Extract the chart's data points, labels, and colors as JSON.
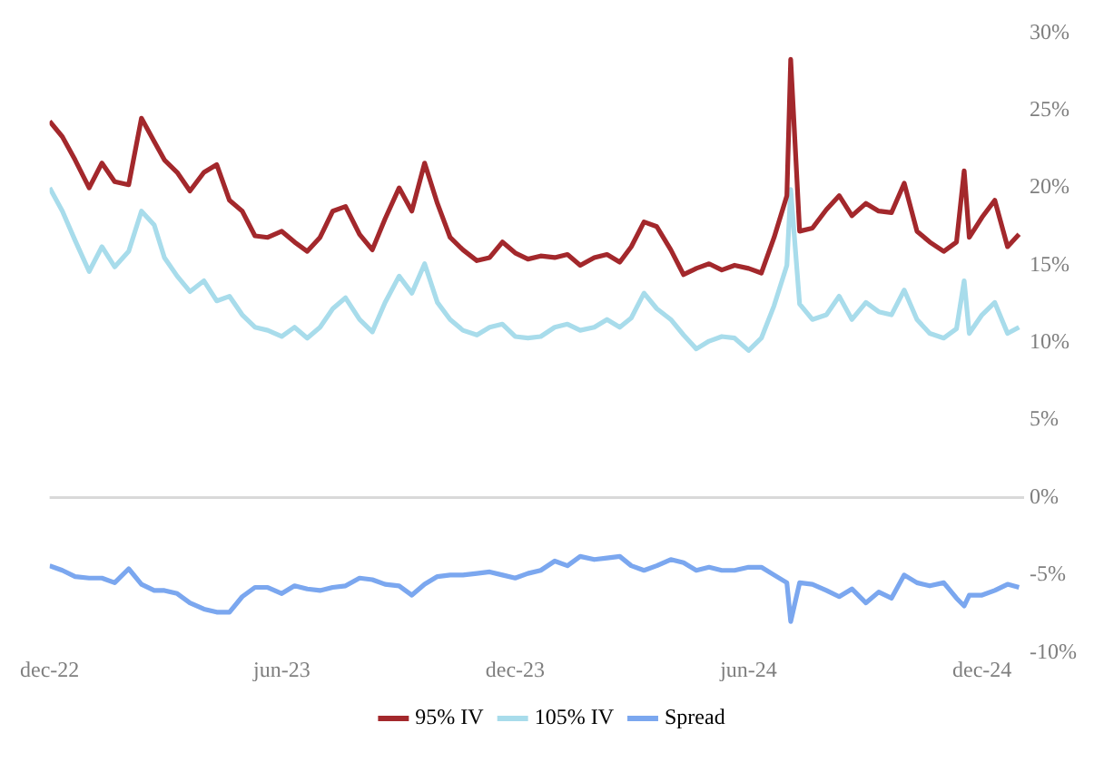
{
  "chart_data": {
    "type": "line",
    "x": [
      "2022-12-01",
      "2022-12-11",
      "2022-12-21",
      "2023-01-01",
      "2023-01-11",
      "2023-01-21",
      "2023-02-01",
      "2023-02-11",
      "2023-02-21",
      "2023-03-01",
      "2023-03-11",
      "2023-03-21",
      "2023-04-01",
      "2023-04-11",
      "2023-04-21",
      "2023-05-01",
      "2023-05-11",
      "2023-05-21",
      "2023-06-01",
      "2023-06-11",
      "2023-06-21",
      "2023-07-01",
      "2023-07-11",
      "2023-07-21",
      "2023-08-01",
      "2023-08-11",
      "2023-08-21",
      "2023-09-01",
      "2023-09-11",
      "2023-09-21",
      "2023-10-01",
      "2023-10-11",
      "2023-10-21",
      "2023-11-01",
      "2023-11-11",
      "2023-11-21",
      "2023-12-01",
      "2023-12-11",
      "2023-12-21",
      "2024-01-01",
      "2024-01-11",
      "2024-01-21",
      "2024-02-01",
      "2024-02-11",
      "2024-02-21",
      "2024-03-01",
      "2024-03-11",
      "2024-03-21",
      "2024-04-01",
      "2024-04-11",
      "2024-04-21",
      "2024-05-01",
      "2024-05-11",
      "2024-05-21",
      "2024-06-01",
      "2024-06-11",
      "2024-06-21",
      "2024-07-01",
      "2024-07-04",
      "2024-07-11",
      "2024-07-21",
      "2024-08-01",
      "2024-08-11",
      "2024-08-21",
      "2024-09-01",
      "2024-09-11",
      "2024-09-21",
      "2024-10-01",
      "2024-10-11",
      "2024-10-21",
      "2024-11-01",
      "2024-11-11",
      "2024-11-17",
      "2024-11-21",
      "2024-12-01",
      "2024-12-11",
      "2024-12-21",
      "2024-12-30"
    ],
    "series": [
      {
        "name": "95% IV",
        "color": "#a3282c",
        "values": [
          24.3,
          23.3,
          21.8,
          20.0,
          21.6,
          20.4,
          20.2,
          24.5,
          23.0,
          21.8,
          21.0,
          19.8,
          21.0,
          21.5,
          19.2,
          18.5,
          16.9,
          16.8,
          17.2,
          16.5,
          15.9,
          16.8,
          18.5,
          18.8,
          17.0,
          16.0,
          18.0,
          20.0,
          18.5,
          21.6,
          19.0,
          16.8,
          16.0,
          15.3,
          15.5,
          16.5,
          15.8,
          15.4,
          15.6,
          15.5,
          15.7,
          15.0,
          15.5,
          15.7,
          15.2,
          16.2,
          17.8,
          17.5,
          16.0,
          14.4,
          14.8,
          15.1,
          14.7,
          15.0,
          14.8,
          14.5,
          16.8,
          19.5,
          28.3,
          17.2,
          17.4,
          18.6,
          19.5,
          18.2,
          19.0,
          18.5,
          18.4,
          20.3,
          17.2,
          16.5,
          15.9,
          16.5,
          21.1,
          16.8,
          18.1,
          19.2,
          16.2,
          17.0
        ]
      },
      {
        "name": "105% IV",
        "color": "#a8dceb",
        "values": [
          20.0,
          18.5,
          16.6,
          14.6,
          16.2,
          14.9,
          15.9,
          18.5,
          17.6,
          15.5,
          14.3,
          13.3,
          14.0,
          12.7,
          13.0,
          11.8,
          11.0,
          10.8,
          10.4,
          11.0,
          10.3,
          11.0,
          12.2,
          12.9,
          11.5,
          10.7,
          12.6,
          14.3,
          13.2,
          15.1,
          12.6,
          11.5,
          10.8,
          10.5,
          11.0,
          11.2,
          10.4,
          10.3,
          10.4,
          11.0,
          11.2,
          10.8,
          11.0,
          11.5,
          11.0,
          11.6,
          13.2,
          12.2,
          11.5,
          10.5,
          9.6,
          10.1,
          10.4,
          10.3,
          9.5,
          10.3,
          12.4,
          15.0,
          19.9,
          12.5,
          11.5,
          11.8,
          13.0,
          11.5,
          12.6,
          12.0,
          11.8,
          13.4,
          11.5,
          10.6,
          10.3,
          10.9,
          14.0,
          10.6,
          11.8,
          12.6,
          10.6,
          11.0
        ]
      },
      {
        "name": "Spread",
        "color": "#7ba7ef",
        "values": [
          -4.4,
          -4.7,
          -5.1,
          -5.2,
          -5.2,
          -5.5,
          -4.6,
          -5.6,
          -6.0,
          -6.0,
          -6.2,
          -6.8,
          -7.2,
          -7.4,
          -7.4,
          -6.4,
          -5.8,
          -5.8,
          -6.2,
          -5.7,
          -5.9,
          -6.0,
          -5.8,
          -5.7,
          -5.2,
          -5.3,
          -5.6,
          -5.7,
          -6.3,
          -5.6,
          -5.1,
          -5.0,
          -5.0,
          -4.9,
          -4.8,
          -5.0,
          -5.2,
          -4.9,
          -4.7,
          -4.1,
          -4.4,
          -3.8,
          -4.0,
          -3.9,
          -3.8,
          -4.4,
          -4.7,
          -4.4,
          -4.0,
          -4.2,
          -4.7,
          -4.5,
          -4.7,
          -4.7,
          -4.5,
          -4.5,
          -5.0,
          -5.5,
          -8.0,
          -5.5,
          -5.6,
          -6.0,
          -6.4,
          -5.9,
          -6.8,
          -6.1,
          -6.5,
          -5.0,
          -5.5,
          -5.7,
          -5.5,
          -6.5,
          -7.0,
          -6.3,
          -6.3,
          -6.0,
          -5.6,
          -5.8
        ]
      }
    ],
    "xlim": [
      "2022-12-01",
      "2025-01-03"
    ],
    "xticks": [
      {
        "value": "2022-12-01",
        "label": "dec-22"
      },
      {
        "value": "2023-06-01",
        "label": "jun-23"
      },
      {
        "value": "2023-12-01",
        "label": "dec-23"
      },
      {
        "value": "2024-06-01",
        "label": "jun-24"
      },
      {
        "value": "2024-12-01",
        "label": "dec-24"
      }
    ],
    "ylim": [
      -10,
      30
    ],
    "yticks": [
      {
        "value": -10,
        "label": "-10%"
      },
      {
        "value": -5,
        "label": "-5%"
      },
      {
        "value": 0,
        "label": "0%"
      },
      {
        "value": 5,
        "label": "5%"
      },
      {
        "value": 10,
        "label": "10%"
      },
      {
        "value": 15,
        "label": "15%"
      },
      {
        "value": 20,
        "label": "20%"
      },
      {
        "value": 25,
        "label": "25%"
      },
      {
        "value": 30,
        "label": "30%"
      }
    ],
    "ref_lines": [
      {
        "axis": "y",
        "value": 0,
        "color": "#d9d9d9"
      }
    ],
    "grid": false,
    "legend": "bottom",
    "marker": "none",
    "line_style": "solid"
  }
}
